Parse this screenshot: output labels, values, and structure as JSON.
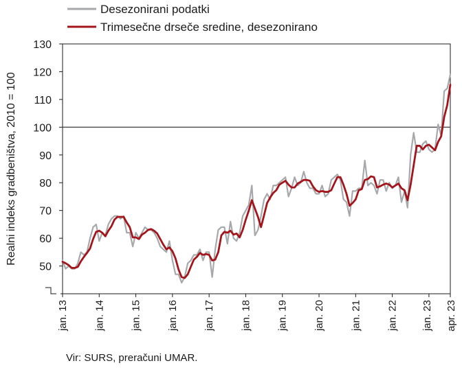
{
  "chart_data": {
    "type": "line",
    "title": "",
    "ylabel": "Realni indeks gradbeništva, 2010 = 100",
    "xlabel": "",
    "ylim": [
      40,
      130
    ],
    "ytick_labels": [
      "50",
      "60",
      "70",
      "80",
      "90",
      "100",
      "110",
      "120",
      "130"
    ],
    "y_axis_break": true,
    "reference_line": 100,
    "grid": false,
    "legend_position": "top-left",
    "x_tick_labels": [
      "jan. 13",
      "jan. 14",
      "jan. 15",
      "jan. 16",
      "jan. 17",
      "jan. 18",
      "jan. 19",
      "jan. 20",
      "jan. 21",
      "jan. 22",
      "jan. 23",
      "apr. 23"
    ],
    "x_start": "jan. 13",
    "x_end": "apr. 23",
    "series": [
      {
        "name": "Desezonirani podatki",
        "color": "#a6a8ab",
        "values": [
          52,
          49,
          50,
          49,
          49,
          51,
          55,
          54,
          55,
          60,
          64,
          65,
          59,
          62,
          61,
          65,
          67,
          68,
          68,
          67,
          68,
          62,
          62,
          57,
          62,
          60,
          62,
          64,
          63,
          63,
          62,
          60,
          57,
          56,
          55,
          59,
          52,
          47,
          47,
          44,
          46,
          51,
          52,
          54,
          54,
          56,
          52,
          55,
          55,
          46,
          56,
          63,
          64,
          64,
          58,
          66,
          60,
          59,
          62,
          68,
          70,
          72,
          79,
          61,
          63,
          68,
          74,
          76,
          74,
          79,
          79,
          80,
          81,
          82,
          75,
          78,
          82,
          79,
          80,
          84,
          80,
          78,
          78,
          76,
          76,
          79,
          75,
          76,
          81,
          82,
          83,
          81,
          74,
          73,
          68,
          77,
          77,
          78,
          78,
          88,
          79,
          80,
          79,
          76,
          81,
          81,
          77,
          80,
          78,
          79,
          82,
          73,
          77,
          71,
          90,
          98,
          91,
          91,
          94,
          95,
          92,
          91,
          92,
          101,
          97,
          113,
          114,
          119
        ]
      },
      {
        "name": "Trimesečne drseče sredine, desezonirano",
        "color": "#a4141b",
        "values": [
          51.5,
          51,
          50.3,
          49.3,
          49.3,
          49.7,
          51.7,
          53.3,
          54.7,
          56.3,
          59.7,
          62.3,
          62.7,
          62,
          60.7,
          62.7,
          64.3,
          66.7,
          67.7,
          67.7,
          67.7,
          65.7,
          64,
          60.3,
          60.3,
          59.7,
          61.3,
          62,
          63,
          63.3,
          62.7,
          61.7,
          59.7,
          57.7,
          56,
          56.7,
          55.3,
          52.7,
          48.7,
          46,
          45.7,
          47,
          49.7,
          52.3,
          53.3,
          54.7,
          54,
          54.3,
          54,
          52,
          52.3,
          55,
          61,
          62.3,
          62,
          62.7,
          61.3,
          61.7,
          60.3,
          63,
          66.7,
          70,
          73.7,
          70.7,
          67.7,
          64,
          68.3,
          72.7,
          74.7,
          76.3,
          77.3,
          79.3,
          80,
          80.7,
          79.3,
          78.3,
          78.3,
          79.7,
          80.3,
          81,
          81,
          80.7,
          78.7,
          77.3,
          76.7,
          77,
          76.7,
          76.7,
          77.3,
          79.7,
          82,
          82,
          79.3,
          76,
          71.7,
          72.7,
          74,
          77.3,
          77.7,
          81,
          81.3,
          82.3,
          82,
          78.3,
          78.7,
          79.3,
          79.7,
          79.3,
          78.3,
          79,
          79.7,
          78,
          77.3,
          73.7,
          79.3,
          86.3,
          93.3,
          93.3,
          92,
          93.3,
          93.7,
          92.7,
          91.7,
          94.7,
          96.7,
          103.7,
          108,
          115.3
        ]
      }
    ]
  },
  "source_text": "Vir: SURS, preračuni UMAR."
}
